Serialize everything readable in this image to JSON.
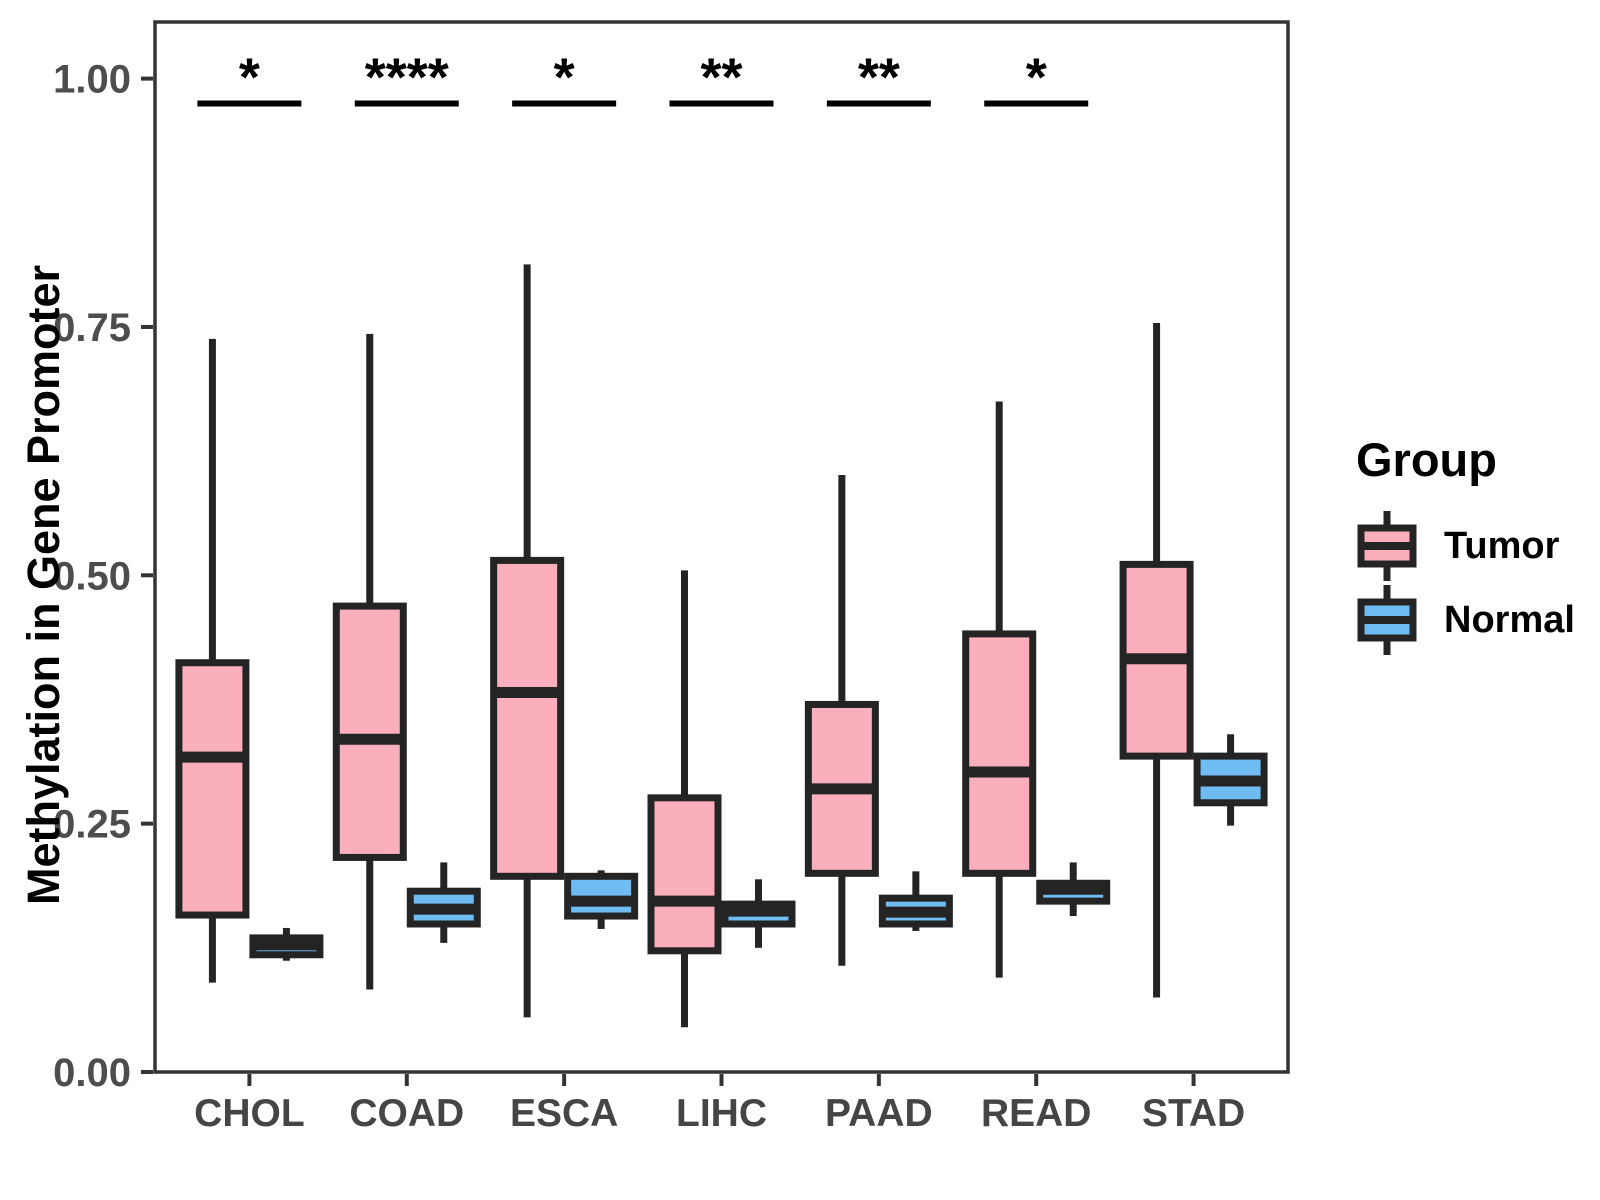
{
  "figure": {
    "background": "#ffffff"
  },
  "chart_data": {
    "type": "boxplot",
    "title": "",
    "xlabel": "",
    "ylabel": "Methylation in Gene Promoter",
    "categories": [
      "CHOL",
      "COAD",
      "ESCA",
      "LIHC",
      "PAAD",
      "READ",
      "STAD"
    ],
    "yticks": [
      0,
      0.25,
      0.5,
      0.75,
      1.0
    ],
    "ytick_labels": [
      "0.00",
      "0.25",
      "0.50",
      "0.75",
      "1.00"
    ],
    "ylim": [
      0,
      1.057
    ],
    "grid": "off",
    "legend_position": "right",
    "legend": {
      "title": "Group"
    },
    "style": {
      "stroke": "#242424",
      "panel_border": "#333333",
      "tick_color": "#333333",
      "tick_label_color": "#4d4d4d",
      "significance_color": "#000000"
    },
    "series": [
      {
        "name": "Tumor",
        "fill": "#FBAEBC",
        "boxes": [
          {
            "category": "CHOL",
            "min": 0.09,
            "q1": 0.158,
            "median": 0.317,
            "q3": 0.412,
            "max": 0.738
          },
          {
            "category": "COAD",
            "min": 0.083,
            "q1": 0.216,
            "median": 0.335,
            "q3": 0.469,
            "max": 0.743
          },
          {
            "category": "ESCA",
            "min": 0.055,
            "q1": 0.197,
            "median": 0.382,
            "q3": 0.515,
            "max": 0.813
          },
          {
            "category": "LIHC",
            "min": 0.045,
            "q1": 0.122,
            "median": 0.172,
            "q3": 0.276,
            "max": 0.505
          },
          {
            "category": "PAAD",
            "min": 0.107,
            "q1": 0.2,
            "median": 0.285,
            "q3": 0.37,
            "max": 0.601
          },
          {
            "category": "READ",
            "min": 0.095,
            "q1": 0.2,
            "median": 0.302,
            "q3": 0.441,
            "max": 0.675
          },
          {
            "category": "STAD",
            "min": 0.075,
            "q1": 0.318,
            "median": 0.416,
            "q3": 0.511,
            "max": 0.754
          }
        ]
      },
      {
        "name": "Normal",
        "fill": "#6FBBF2",
        "boxes": [
          {
            "category": "CHOL",
            "min": 0.112,
            "q1": 0.118,
            "median": 0.128,
            "q3": 0.135,
            "max": 0.145
          },
          {
            "category": "COAD",
            "min": 0.13,
            "q1": 0.149,
            "median": 0.164,
            "q3": 0.182,
            "max": 0.211
          },
          {
            "category": "ESCA",
            "min": 0.144,
            "q1": 0.157,
            "median": 0.172,
            "q3": 0.197,
            "max": 0.203
          },
          {
            "category": "LIHC",
            "min": 0.125,
            "q1": 0.149,
            "median": 0.162,
            "q3": 0.169,
            "max": 0.194
          },
          {
            "category": "PAAD",
            "min": 0.142,
            "q1": 0.149,
            "median": 0.161,
            "q3": 0.175,
            "max": 0.202
          },
          {
            "category": "READ",
            "min": 0.157,
            "q1": 0.172,
            "median": 0.184,
            "q3": 0.19,
            "max": 0.211
          },
          {
            "category": "STAD",
            "min": 0.248,
            "q1": 0.271,
            "median": 0.293,
            "q3": 0.318,
            "max": 0.34
          }
        ]
      }
    ],
    "significance": [
      "*",
      "****",
      "*",
      "**",
      "**",
      "*",
      ""
    ],
    "sig_line_y": 0.975
  }
}
